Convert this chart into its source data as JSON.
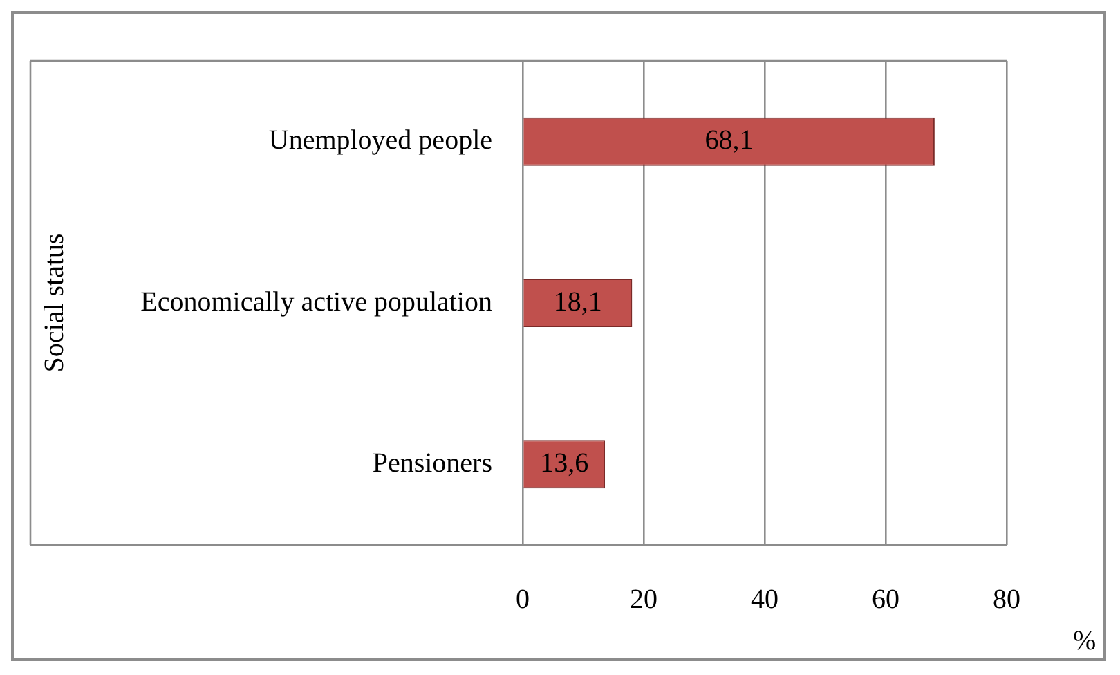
{
  "chart_data": {
    "type": "bar",
    "orientation": "horizontal",
    "ylabel": "Social status",
    "xlabel": "%",
    "categories": [
      "Unemployed people",
      "Economically active population",
      "Pensioners"
    ],
    "values": [
      68.1,
      18.1,
      13.6
    ],
    "value_labels": [
      "68,1",
      "18,1",
      "13,6"
    ],
    "color": "#c0504d",
    "xlim": [
      0,
      80
    ],
    "xticks": [
      0,
      20,
      40,
      60,
      80
    ],
    "grid": "x",
    "legend": false
  }
}
